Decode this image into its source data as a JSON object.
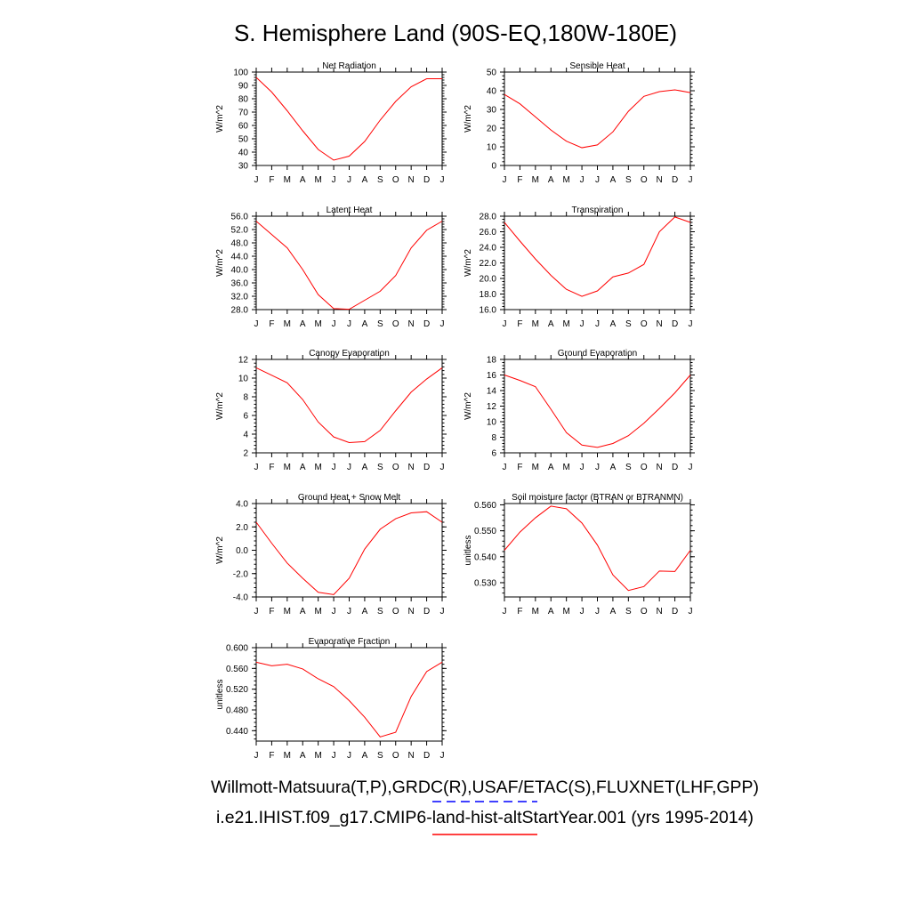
{
  "title": "S. Hemisphere Land (90S-EQ,180W-180E)",
  "months": [
    "J",
    "F",
    "M",
    "A",
    "M",
    "J",
    "J",
    "A",
    "S",
    "O",
    "N",
    "D",
    "J"
  ],
  "legend": {
    "line1": "Willmott-Matsuura(T,P),GRDC(R),USAF/ETAC(S),FLUXNET(LHF,GPP)",
    "line1_color": "#0000ff",
    "line1_style": "dashed",
    "line2": "i.e21.IHIST.f09_g17.CMIP6-land-hist-altStartYear.001 (yrs 1995-2014)",
    "line2_color": "#ff0000",
    "line2_style": "solid"
  },
  "chart_data": [
    {
      "type": "line",
      "title": "Net Radiation",
      "ylabel": "W/m^2",
      "ylim": [
        30,
        100
      ],
      "yticks": [
        "30",
        "40",
        "50",
        "60",
        "70",
        "80",
        "90",
        "100"
      ],
      "yticks_val": [
        30,
        40,
        50,
        60,
        70,
        80,
        90,
        100
      ],
      "series": [
        {
          "color": "#ff0000",
          "values": [
            96,
            85,
            71,
            56,
            42,
            34,
            37,
            48,
            64,
            78,
            89,
            95,
            95
          ]
        }
      ]
    },
    {
      "type": "line",
      "title": "Sensible Heat",
      "ylabel": "W/m^2",
      "ylim": [
        0,
        50
      ],
      "yticks": [
        "0",
        "10",
        "20",
        "30",
        "40",
        "50"
      ],
      "yticks_val": [
        0,
        10,
        20,
        30,
        40,
        50
      ],
      "series": [
        {
          "color": "#ff0000",
          "values": [
            38,
            33,
            26,
            19,
            13,
            9.5,
            11,
            18,
            29,
            37,
            39.5,
            40.5,
            39
          ]
        }
      ]
    },
    {
      "type": "line",
      "title": "Latent Heat",
      "ylabel": "W/m^2",
      "ylim": [
        28,
        56
      ],
      "yticks": [
        "28.0",
        "32.0",
        "36.0",
        "40.0",
        "44.0",
        "48.0",
        "52.0",
        "56.0"
      ],
      "yticks_val": [
        28,
        32,
        36,
        40,
        44,
        48,
        52,
        56
      ],
      "series": [
        {
          "color": "#ff0000",
          "values": [
            54.5,
            50.5,
            46.5,
            40,
            32.5,
            28.3,
            28.1,
            30.8,
            33.5,
            38.2,
            46.5,
            51.8,
            54.5
          ]
        }
      ]
    },
    {
      "type": "line",
      "title": "Transpiration",
      "ylabel": "W/m^2",
      "ylim": [
        16,
        28
      ],
      "yticks": [
        "16.0",
        "18.0",
        "20.0",
        "22.0",
        "24.0",
        "26.0",
        "28.0"
      ],
      "yticks_val": [
        16,
        18,
        20,
        22,
        24,
        26,
        28
      ],
      "series": [
        {
          "color": "#ff0000",
          "values": [
            27.2,
            24.8,
            22.5,
            20.4,
            18.6,
            17.7,
            18.4,
            20.2,
            20.7,
            21.8,
            26.0,
            27.9,
            27.2
          ]
        }
      ]
    },
    {
      "type": "line",
      "title": "Canopy Evaporation",
      "ylabel": "W/m^2",
      "ylim": [
        2,
        12
      ],
      "yticks": [
        "2",
        "4",
        "6",
        "8",
        "10",
        "12"
      ],
      "yticks_val": [
        2,
        4,
        6,
        8,
        10,
        12
      ],
      "series": [
        {
          "color": "#ff0000",
          "values": [
            11.1,
            10.3,
            9.5,
            7.7,
            5.3,
            3.7,
            3.1,
            3.2,
            4.4,
            6.5,
            8.5,
            9.9,
            11.1
          ]
        }
      ]
    },
    {
      "type": "line",
      "title": "Ground Evaporation",
      "ylabel": "W/m^2",
      "ylim": [
        6,
        18
      ],
      "yticks": [
        "6",
        "8",
        "10",
        "12",
        "14",
        "16",
        "18"
      ],
      "yticks_val": [
        6,
        8,
        10,
        12,
        14,
        16,
        18
      ],
      "series": [
        {
          "color": "#ff0000",
          "values": [
            16.0,
            15.3,
            14.5,
            11.6,
            8.6,
            7.0,
            6.7,
            7.2,
            8.2,
            9.8,
            11.7,
            13.7,
            16.0
          ]
        }
      ]
    },
    {
      "type": "line",
      "title": "Ground Heat + Snow Melt",
      "ylabel": "W/m^2",
      "ylim": [
        -4,
        4
      ],
      "yticks": [
        "-4.0",
        "-2.0",
        "0.0",
        "2.0",
        "4.0"
      ],
      "yticks_val": [
        -4,
        -2,
        0,
        2,
        4
      ],
      "series": [
        {
          "color": "#ff0000",
          "values": [
            2.4,
            0.6,
            -1.1,
            -2.4,
            -3.6,
            -3.8,
            -2.4,
            0.1,
            1.8,
            2.7,
            3.2,
            3.3,
            2.4
          ]
        }
      ]
    },
    {
      "type": "line",
      "title": "Soil moisture factor (BTRAN or BTRANMN)",
      "ylabel": "unitless",
      "ylim": [
        0.5245,
        0.5605
      ],
      "yticks": [
        "0.530",
        "0.540",
        "0.550",
        "0.560"
      ],
      "yticks_val": [
        0.53,
        0.54,
        0.55,
        0.56
      ],
      "series": [
        {
          "color": "#ff0000",
          "values": [
            0.5425,
            0.5495,
            0.555,
            0.5595,
            0.5585,
            0.553,
            0.5445,
            0.533,
            0.527,
            0.5285,
            0.5345,
            0.5343,
            0.5425
          ]
        }
      ]
    },
    {
      "type": "line",
      "title": "Evaporative Fraction",
      "ylabel": "unitless",
      "ylim": [
        0.42,
        0.6
      ],
      "yticks": [
        "0.440",
        "0.480",
        "0.520",
        "0.560",
        "0.600"
      ],
      "yticks_val": [
        0.44,
        0.48,
        0.52,
        0.56,
        0.6
      ],
      "series": [
        {
          "color": "#ff0000",
          "values": [
            0.572,
            0.565,
            0.568,
            0.559,
            0.54,
            0.525,
            0.498,
            0.466,
            0.428,
            0.437,
            0.506,
            0.554,
            0.572
          ]
        }
      ]
    }
  ]
}
